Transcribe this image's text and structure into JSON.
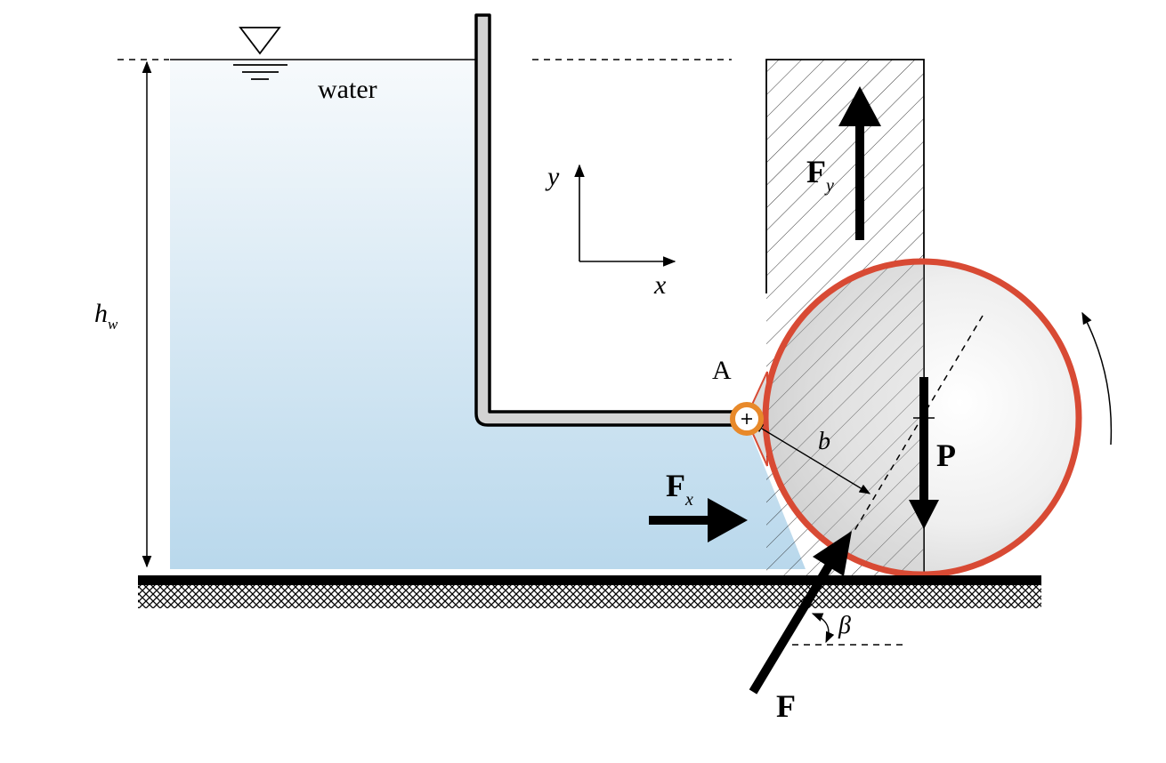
{
  "labels": {
    "water": "water",
    "height": "h",
    "height_sub": "w",
    "axis_y": "y",
    "axis_x": "x",
    "point_a": "A",
    "lever_arm": "b",
    "force_fy": "F",
    "force_fy_sub": "y",
    "force_fx": "F",
    "force_fx_sub": "x",
    "force_p": "P",
    "force_f": "F",
    "angle": "β"
  },
  "colors": {
    "water_top": "#f7fafc",
    "water_bottom": "#b9d8ec",
    "cylinder_rim": "#d84a34",
    "hinge": "#e8892a",
    "pipe_fill": "#d3d3d3",
    "cylinder_fill": "#ececec"
  }
}
